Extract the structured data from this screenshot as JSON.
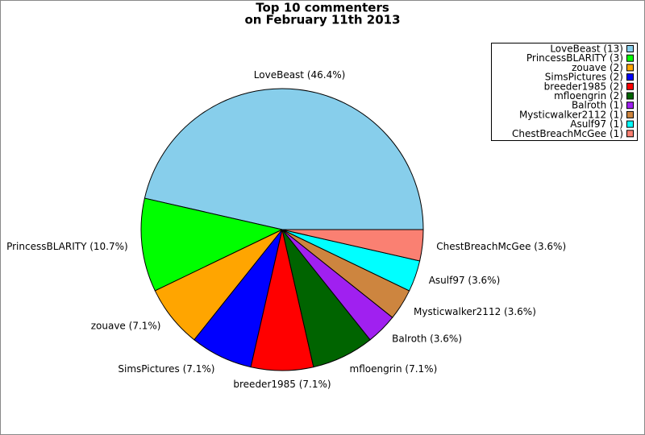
{
  "chart_data": {
    "type": "pie",
    "title_lines": [
      "Top 10 commenters",
      "on February 11th 2013"
    ],
    "values": [
      13,
      3,
      2,
      2,
      2,
      2,
      1,
      1,
      1,
      1
    ],
    "labels": [
      "LoveBeast (46.4%)",
      "PrincessBLARITY (10.7%)",
      "zouave (7.1%)",
      "SimsPictures (7.1%)",
      "breeder1985 (7.1%)",
      "mfloengrin (7.1%)",
      "Balroth (3.6%)",
      "Mysticwalker2112 (3.6%)",
      "Asulf97 (3.6%)",
      "ChestBreachMcGee (3.6%)"
    ],
    "legend_labels": [
      "LoveBeast (13)",
      "PrincessBLARITY (3)",
      "zouave (2)",
      "SimsPictures (2)",
      "breeder1985 (2)",
      "mfloengrin (2)",
      "Balroth (1)",
      "Mysticwalker2112 (1)",
      "Asulf97 (1)",
      "ChestBreachMcGee (1)"
    ],
    "colors": [
      "#87ceeb",
      "#00ff00",
      "#ffa500",
      "#0000ff",
      "#ff0000",
      "#006400",
      "#a020f0",
      "#cd853f",
      "#00ffff",
      "#fa8072"
    ],
    "legend_position": "upper right"
  }
}
